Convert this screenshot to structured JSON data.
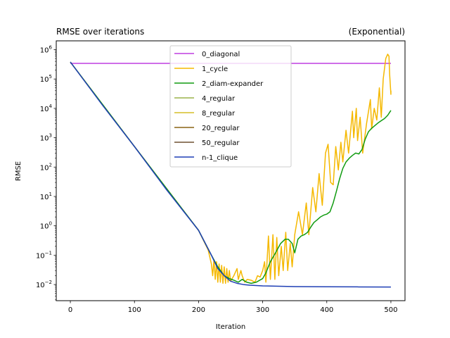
{
  "chart_data": {
    "type": "line",
    "title_left": "RMSE over iterations",
    "title_right": "(Exponential)",
    "xlabel": "Iteration",
    "ylabel": "RMSE",
    "xlim": [
      -22,
      522
    ],
    "ylim_log10": [
      -2.55,
      6.3
    ],
    "yscale": "log",
    "xticks": [
      0,
      100,
      200,
      300,
      400,
      500
    ],
    "xtick_labels": [
      "0",
      "100",
      "200",
      "300",
      "400",
      "500"
    ],
    "yticks_exponents": [
      -2,
      -1,
      0,
      1,
      2,
      3,
      4,
      5,
      6
    ],
    "ytick_labels": [
      {
        "base": "10",
        "exp": "−2"
      },
      {
        "base": "10",
        "exp": "−1"
      },
      {
        "base": "10",
        "exp": "0"
      },
      {
        "base": "10",
        "exp": "1"
      },
      {
        "base": "10",
        "exp": "2"
      },
      {
        "base": "10",
        "exp": "3"
      },
      {
        "base": "10",
        "exp": "4"
      },
      {
        "base": "10",
        "exp": "5"
      },
      {
        "base": "10",
        "exp": "6"
      }
    ],
    "grid": false,
    "legend_position": "upper-center",
    "series": [
      {
        "name": "0_diagonal",
        "color": "#bf3fe0",
        "points": [
          [
            0,
            340000
          ],
          [
            500,
            340000
          ]
        ]
      },
      {
        "name": "1_cycle",
        "color": "#f5b800",
        "points": [
          [
            0,
            380000
          ],
          [
            100,
            500
          ],
          [
            200,
            0.7
          ],
          [
            215,
            0.15
          ],
          [
            220,
            0.05
          ],
          [
            222,
            0.02
          ],
          [
            224,
            0.07
          ],
          [
            226,
            0.015
          ],
          [
            228,
            0.06
          ],
          [
            230,
            0.012
          ],
          [
            232,
            0.05
          ],
          [
            234,
            0.012
          ],
          [
            236,
            0.045
          ],
          [
            238,
            0.011
          ],
          [
            240,
            0.04
          ],
          [
            242,
            0.011
          ],
          [
            244,
            0.035
          ],
          [
            246,
            0.012
          ],
          [
            248,
            0.03
          ],
          [
            250,
            0.013
          ],
          [
            255,
            0.02
          ],
          [
            260,
            0.035
          ],
          [
            262,
            0.015
          ],
          [
            266,
            0.03
          ],
          [
            268,
            0.02
          ],
          [
            272,
            0.012
          ],
          [
            276,
            0.015
          ],
          [
            282,
            0.014
          ],
          [
            288,
            0.012
          ],
          [
            292,
            0.02
          ],
          [
            296,
            0.018
          ],
          [
            300,
            0.03
          ],
          [
            303,
            0.06
          ],
          [
            305,
            0.012
          ],
          [
            309,
            0.45
          ],
          [
            312,
            0.015
          ],
          [
            316,
            0.5
          ],
          [
            319,
            0.015
          ],
          [
            322,
            0.4
          ],
          [
            325,
            0.02
          ],
          [
            329,
            0.2
          ],
          [
            332,
            0.03
          ],
          [
            336,
            0.6
          ],
          [
            339,
            0.03
          ],
          [
            343,
            0.25
          ],
          [
            346,
            0.04
          ],
          [
            350,
            0.5
          ],
          [
            356,
            3
          ],
          [
            362,
            0.5
          ],
          [
            368,
            6
          ],
          [
            372,
            0.5
          ],
          [
            378,
            20
          ],
          [
            383,
            3
          ],
          [
            388,
            60
          ],
          [
            393,
            5
          ],
          [
            398,
            300
          ],
          [
            402,
            600
          ],
          [
            406,
            30
          ],
          [
            410,
            25
          ],
          [
            414,
            500
          ],
          [
            418,
            80
          ],
          [
            422,
            700
          ],
          [
            425,
            150
          ],
          [
            430,
            1800
          ],
          [
            434,
            300
          ],
          [
            440,
            8000
          ],
          [
            442,
            1000
          ],
          [
            446,
            10000
          ],
          [
            448,
            800
          ],
          [
            452,
            5000
          ],
          [
            456,
            300
          ],
          [
            462,
            3000
          ],
          [
            468,
            20000
          ],
          [
            470,
            2000
          ],
          [
            474,
            10000
          ],
          [
            478,
            4000
          ],
          [
            482,
            50000
          ],
          [
            485,
            5000
          ],
          [
            488,
            100000
          ],
          [
            492,
            500000
          ],
          [
            495,
            700000
          ],
          [
            497,
            600000
          ],
          [
            498,
            150000
          ],
          [
            500,
            30000
          ],
          [
            500,
            40000
          ]
        ]
      },
      {
        "name": "2_diam-expander",
        "color": "#109b10",
        "points": [
          [
            0,
            380000
          ],
          [
            100,
            500
          ],
          [
            200,
            0.7
          ],
          [
            220,
            0.1
          ],
          [
            230,
            0.04
          ],
          [
            240,
            0.02
          ],
          [
            248,
            0.016
          ],
          [
            255,
            0.014
          ],
          [
            262,
            0.012
          ],
          [
            268,
            0.015
          ],
          [
            275,
            0.012
          ],
          [
            282,
            0.011
          ],
          [
            290,
            0.012
          ],
          [
            300,
            0.016
          ],
          [
            305,
            0.025
          ],
          [
            312,
            0.06
          ],
          [
            320,
            0.12
          ],
          [
            328,
            0.25
          ],
          [
            335,
            0.35
          ],
          [
            340,
            0.35
          ],
          [
            346,
            0.25
          ],
          [
            350,
            0.12
          ],
          [
            355,
            0.35
          ],
          [
            360,
            0.45
          ],
          [
            365,
            0.5
          ],
          [
            370,
            0.6
          ],
          [
            375,
            0.9
          ],
          [
            380,
            1.3
          ],
          [
            385,
            1.6
          ],
          [
            390,
            2
          ],
          [
            395,
            2.3
          ],
          [
            400,
            2.5
          ],
          [
            405,
            3
          ],
          [
            410,
            6
          ],
          [
            415,
            15
          ],
          [
            420,
            40
          ],
          [
            425,
            90
          ],
          [
            430,
            150
          ],
          [
            435,
            200
          ],
          [
            440,
            250
          ],
          [
            445,
            300
          ],
          [
            450,
            280
          ],
          [
            455,
            400
          ],
          [
            460,
            900
          ],
          [
            465,
            1600
          ],
          [
            470,
            2100
          ],
          [
            475,
            2600
          ],
          [
            480,
            3200
          ],
          [
            485,
            3800
          ],
          [
            490,
            4500
          ],
          [
            495,
            5800
          ],
          [
            500,
            8500
          ]
        ]
      },
      {
        "name": "4_regular",
        "color": "#9bb34a",
        "points": []
      },
      {
        "name": "8_regular",
        "color": "#d6bd28",
        "points": []
      },
      {
        "name": "20_regular",
        "color": "#8a6314",
        "points": []
      },
      {
        "name": "50_regular",
        "color": "#6e5030",
        "points": []
      },
      {
        "name": "n-1_clique",
        "color": "#1f3fb5",
        "points": [
          [
            0,
            380000
          ],
          [
            50,
            13000
          ],
          [
            100,
            500
          ],
          [
            150,
            17
          ],
          [
            200,
            0.7
          ],
          [
            220,
            0.1
          ],
          [
            230,
            0.035
          ],
          [
            240,
            0.02
          ],
          [
            250,
            0.013
          ],
          [
            260,
            0.011
          ],
          [
            270,
            0.01
          ],
          [
            280,
            0.0095
          ],
          [
            300,
            0.009
          ],
          [
            320,
            0.0088
          ],
          [
            350,
            0.0085
          ],
          [
            400,
            0.0084
          ],
          [
            450,
            0.0083
          ],
          [
            500,
            0.0082
          ]
        ]
      }
    ]
  }
}
